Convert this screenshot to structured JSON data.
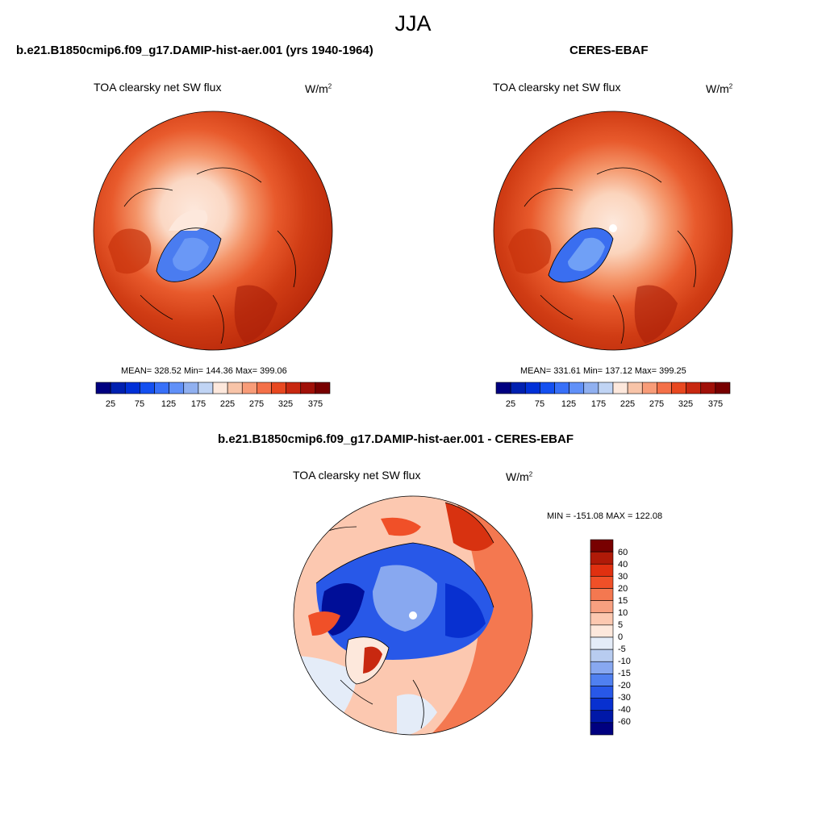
{
  "season": "JJA",
  "panels": [
    {
      "title": "b.e21.B1850cmip6.f09_g17.DAMIP-hist-aer.001 (yrs 1940-1964)",
      "variable": "TOA clearsky net SW flux",
      "units": "W/m",
      "units_exp": "2",
      "stats": "MEAN= 328.52  Min= 144.36  Max= 399.06"
    },
    {
      "title": "CERES-EBAF",
      "variable": "TOA clearsky net SW flux",
      "units": "W/m",
      "units_exp": "2",
      "stats": "MEAN= 331.61  Min= 137.12  Max= 399.25"
    }
  ],
  "diff_panel": {
    "title": "b.e21.B1850cmip6.f09_g17.DAMIP-hist-aer.001 - CERES-EBAF",
    "variable": "TOA clearsky net SW flux",
    "units": "W/m",
    "units_exp": "2",
    "stats": "MIN = -151.08 MAX = 122.08"
  },
  "colorbar_abs": {
    "labels": [
      "25",
      "75",
      "125",
      "175",
      "225",
      "275",
      "325",
      "375"
    ],
    "colors": [
      "#000080",
      "#0020b0",
      "#0030d8",
      "#1450f0",
      "#3870f8",
      "#6090f8",
      "#90b0f0",
      "#c0d4f4",
      "#fde8dc",
      "#f8c4a8",
      "#f89c78",
      "#f47048",
      "#e84820",
      "#c82810",
      "#a01008",
      "#780000"
    ]
  },
  "colorbar_diff": {
    "labels": [
      "60",
      "40",
      "30",
      "20",
      "15",
      "10",
      "5",
      "0",
      "-5",
      "-10",
      "-15",
      "-20",
      "-30",
      "-40",
      "-60"
    ],
    "colors": [
      "#780000",
      "#b01a08",
      "#e03010",
      "#f05028",
      "#f47850",
      "#f8a080",
      "#fcc8b0",
      "#fde8dc",
      "#e4ecf8",
      "#b8ccf0",
      "#88a8f0",
      "#5080f0",
      "#2858e8",
      "#0830d0",
      "#0018a8",
      "#000080"
    ]
  }
}
